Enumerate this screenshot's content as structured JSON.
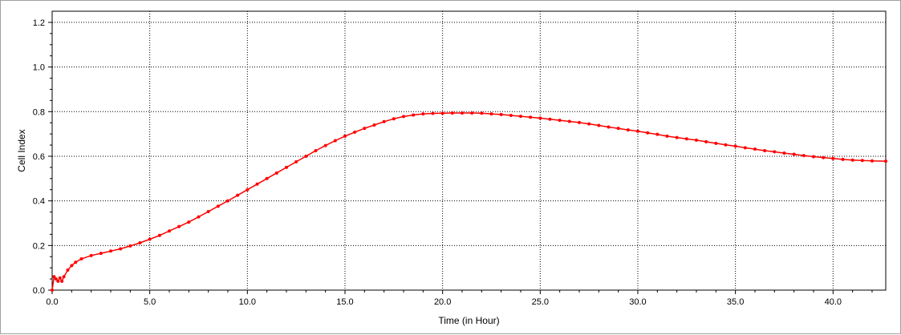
{
  "chart_data": {
    "type": "line",
    "title": "",
    "xlabel": "Time (in Hour)",
    "ylabel": "Cell Index",
    "xlim": [
      0,
      42.7
    ],
    "ylim": [
      0,
      1.25
    ],
    "x_ticks": [
      "0.0",
      "5.0",
      "10.0",
      "15.0",
      "20.0",
      "25.0",
      "30.0",
      "35.0",
      "40.0"
    ],
    "x_tick_values": [
      0,
      5,
      10,
      15,
      20,
      25,
      30,
      35,
      40
    ],
    "y_ticks": [
      "0.0",
      "0.2",
      "0.4",
      "0.6",
      "0.8",
      "1.0",
      "1.2"
    ],
    "y_tick_values": [
      0,
      0.2,
      0.4,
      0.6,
      0.8,
      1.0,
      1.2
    ],
    "grid": true,
    "grid_style": "dotted",
    "line_color": "#ff0000",
    "series": [
      {
        "x": [
          0,
          0.1,
          0.2,
          0.3,
          0.4,
          0.5,
          0.6,
          0.8,
          1.0,
          1.2,
          1.5,
          2.0,
          2.5,
          3.0,
          3.5,
          4.0,
          4.5,
          5.0,
          5.5,
          6.0,
          6.5,
          7.0,
          7.5,
          8.0,
          8.5,
          9.0,
          9.5,
          10.0,
          10.5,
          11.0,
          11.5,
          12.0,
          12.5,
          13.0,
          13.5,
          14.0,
          14.5,
          15.0,
          15.5,
          16.0,
          16.5,
          17.0,
          17.5,
          18.0,
          18.5,
          19.0,
          19.5,
          20.0,
          20.5,
          21.0,
          21.5,
          22.0,
          22.5,
          23.0,
          23.5,
          24.0,
          24.5,
          25.0,
          25.5,
          26.0,
          26.5,
          27.0,
          27.5,
          28.0,
          28.5,
          29.0,
          29.5,
          30.0,
          30.5,
          31.0,
          31.5,
          32.0,
          32.5,
          33.0,
          33.5,
          34.0,
          34.5,
          35.0,
          35.5,
          36.0,
          36.5,
          37.0,
          37.5,
          38.0,
          38.5,
          39.0,
          39.5,
          40.0,
          40.5,
          41.0,
          41.5,
          42.0,
          42.7
        ],
        "y": [
          0.0,
          0.06,
          0.05,
          0.04,
          0.055,
          0.04,
          0.06,
          0.09,
          0.11,
          0.125,
          0.14,
          0.155,
          0.165,
          0.175,
          0.185,
          0.198,
          0.212,
          0.228,
          0.245,
          0.265,
          0.285,
          0.305,
          0.328,
          0.352,
          0.376,
          0.4,
          0.425,
          0.45,
          0.475,
          0.5,
          0.525,
          0.55,
          0.575,
          0.6,
          0.625,
          0.648,
          0.67,
          0.69,
          0.708,
          0.725,
          0.74,
          0.755,
          0.768,
          0.778,
          0.785,
          0.79,
          0.792,
          0.793,
          0.794,
          0.794,
          0.794,
          0.793,
          0.79,
          0.787,
          0.783,
          0.779,
          0.775,
          0.771,
          0.766,
          0.761,
          0.756,
          0.751,
          0.745,
          0.738,
          0.731,
          0.725,
          0.718,
          0.712,
          0.705,
          0.698,
          0.69,
          0.684,
          0.678,
          0.672,
          0.665,
          0.658,
          0.651,
          0.645,
          0.638,
          0.632,
          0.625,
          0.62,
          0.614,
          0.609,
          0.603,
          0.598,
          0.594,
          0.59,
          0.586,
          0.583,
          0.581,
          0.579,
          0.578
        ]
      }
    ]
  }
}
